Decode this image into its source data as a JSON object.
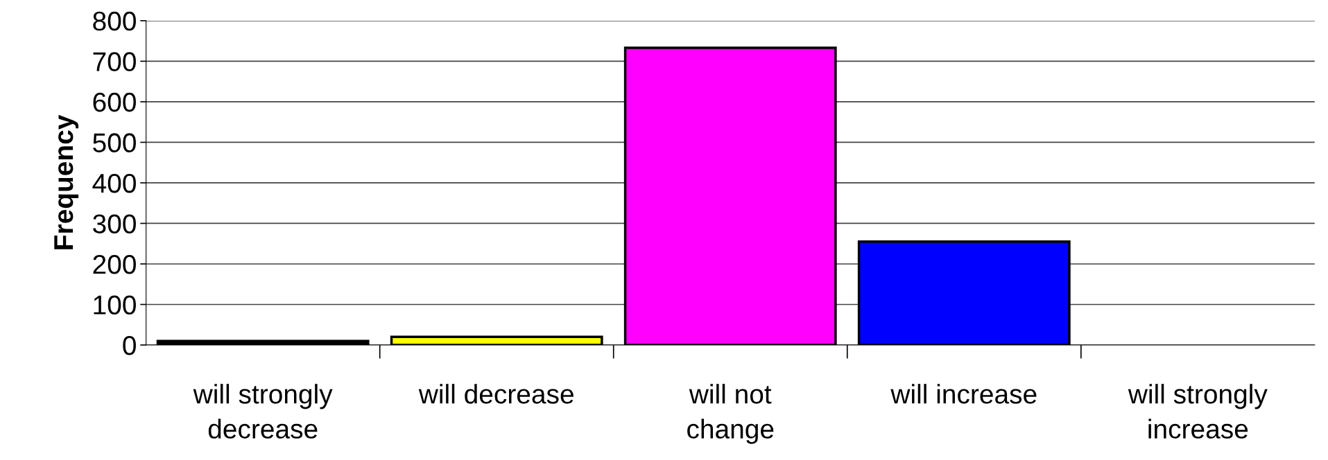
{
  "chart_data": {
    "type": "bar",
    "ylabel": "Frequency",
    "categories": [
      "will strongly\ndecrease",
      "will decrease",
      "will not\nchange",
      "will increase",
      "will strongly\nincrease"
    ],
    "values": [
      10,
      20,
      733,
      255,
      null
    ],
    "colors": [
      "#000000",
      "#ffff00",
      "#ff00ff",
      "#0000ff",
      null
    ],
    "ylim": [
      0,
      800
    ],
    "yticks": [
      0,
      100,
      200,
      300,
      400,
      500,
      600,
      700,
      800
    ],
    "grid": "y"
  }
}
